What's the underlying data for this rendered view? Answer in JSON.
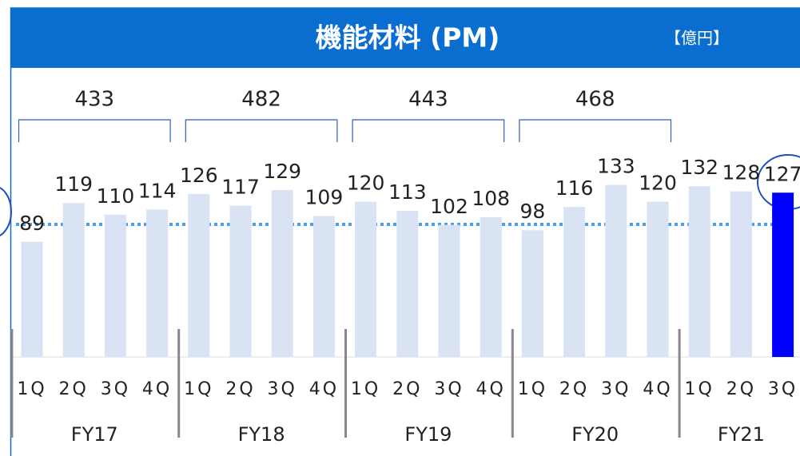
{
  "chart_data": {
    "type": "bar",
    "title": "機能材料 (PM)",
    "unit": "【億円】",
    "categories": [
      "1Q",
      "2Q",
      "3Q",
      "4Q",
      "1Q",
      "2Q",
      "3Q",
      "4Q",
      "1Q",
      "2Q",
      "3Q",
      "4Q",
      "1Q",
      "2Q",
      "3Q",
      "4Q",
      "1Q",
      "2Q",
      "3Q"
    ],
    "values": [
      89,
      119,
      110,
      114,
      126,
      117,
      129,
      109,
      120,
      113,
      102,
      108,
      98,
      116,
      133,
      120,
      132,
      128,
      127
    ],
    "colors": [
      "#dae3f3",
      "#dae3f3",
      "#dae3f3",
      "#dae3f3",
      "#dae3f3",
      "#dae3f3",
      "#dae3f3",
      "#dae3f3",
      "#dae3f3",
      "#dae3f3",
      "#dae3f3",
      "#dae3f3",
      "#dae3f3",
      "#dae3f3",
      "#dae3f3",
      "#dae3f3",
      "#dae3f3",
      "#dae3f3",
      "#0000ff"
    ],
    "groups": [
      "FY17",
      "FY18",
      "FY19",
      "FY20",
      "FY21"
    ],
    "group_totals": [
      433,
      482,
      443,
      468
    ]
  }
}
